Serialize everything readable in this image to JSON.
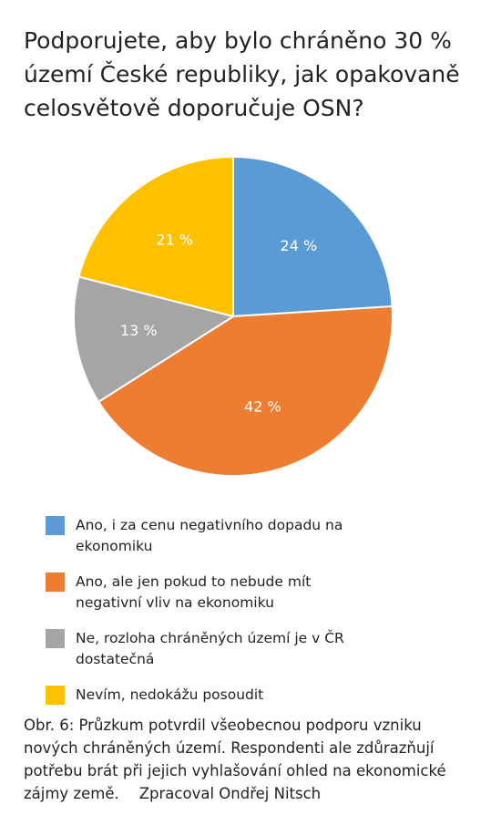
{
  "chart_data": {
    "type": "pie",
    "title": "Podporujete, aby bylo chráněno 30 % území České republiky, jak opakovaně celosvětově doporučuje OSN?",
    "categories": [
      "Ano, i za cenu negativního dopadu na ekonomiku",
      "Ano, ale jen pokud to nebude mít negativní vliv na ekonomiku",
      "Ne, rozloha chráněných území je v ČR dostatečná",
      "Nevím, nedokážu posoudit"
    ],
    "values": [
      24,
      42,
      13,
      21
    ],
    "value_labels": [
      "24 %",
      "42 %",
      "13 %",
      "21 %"
    ],
    "colors": [
      "#5b9bd5",
      "#ed7d31",
      "#a5a5a5",
      "#ffc000"
    ],
    "caption": "Obr. 6: Průzkum potvrdil všeobecnou podporu vzniku nových chráněných území. Respondenti ale zdůrazňují potřebu brát při jejich vyhlašování ohled na ekonomické zájmy země.",
    "credit": "Zpracoval Ondřej Nitsch"
  }
}
